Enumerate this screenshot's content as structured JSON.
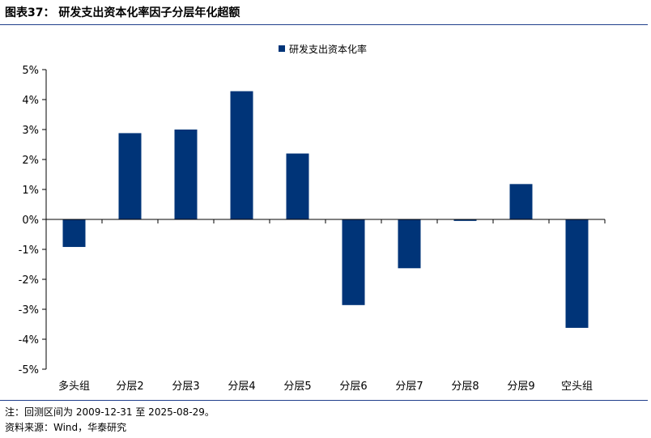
{
  "header": {
    "title": "图表37： 研发支出资本化率因子分层年化超额"
  },
  "footer": {
    "note": "注：回测区间为 2009-12-31 至 2025-08-29。",
    "source": "资料来源：Wind，华泰研究"
  },
  "colors": {
    "bar": "#003478",
    "rule": "#1f3f8c"
  },
  "chart_data": {
    "type": "bar",
    "title": "图表37： 研发支出资本化率因子分层年化超额",
    "categories": [
      "多头组",
      "分层2",
      "分层3",
      "分层4",
      "分层5",
      "分层6",
      "分层7",
      "分层8",
      "分层9",
      "空头组"
    ],
    "series": [
      {
        "name": "研发支出资本化率",
        "values": [
          -0.92,
          2.88,
          3.0,
          4.28,
          2.2,
          -2.86,
          -1.63,
          -0.05,
          1.18,
          -3.62
        ]
      }
    ],
    "ylim": [
      -5,
      5
    ],
    "yticks": [
      -5,
      -4,
      -3,
      -2,
      -1,
      0,
      1,
      2,
      3,
      4,
      5
    ],
    "ytick_format": "percent",
    "legend": "top-center",
    "grid": false
  }
}
